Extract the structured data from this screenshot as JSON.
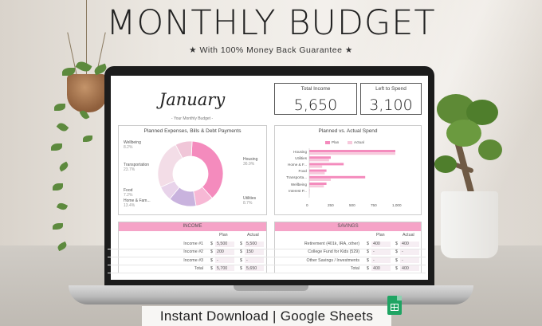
{
  "header": {
    "title": "MONTHLY BUDGET",
    "subtitle": "★ With 100% Money Back Guarantee ★"
  },
  "banner": {
    "text": "Instant Download | Google Sheets",
    "icon": "google-sheets-icon"
  },
  "screen": {
    "month": "January",
    "month_sub": "- Your Monthly Budget -",
    "total_income": {
      "label": "Total Income",
      "value": "5,650"
    },
    "left_to_spend": {
      "label": "Left to Spend",
      "value": "3,100"
    },
    "donut": {
      "title": "Planned Expenses, Bills & Debt Payments",
      "slices": [
        {
          "label": "Housing",
          "pct_label": "36.9%",
          "value": 36.9,
          "color": "#f48bbd"
        },
        {
          "label": "Utilities",
          "pct_label": "8.7%",
          "value": 8.7,
          "color": "#f7b8d5"
        },
        {
          "label": "Home & Fam...",
          "pct_label": "13.4%",
          "value": 13.4,
          "color": "#c9b3de"
        },
        {
          "label": "Food",
          "pct_label": "7.2%",
          "value": 7.2,
          "color": "#e8d3ea"
        },
        {
          "label": "Transportation",
          "pct_label": "23.7%",
          "value": 23.7,
          "color": "#f3dde7"
        },
        {
          "label": "Wellbeing",
          "pct_label": "8.2%",
          "value": 8.2,
          "color": "#f0c6d8"
        }
      ]
    },
    "chart_data": {
      "type": "bar",
      "title": "Planned vs. Actual Spend",
      "categories": [
        "Housing",
        "Utilities",
        "Home & F...",
        "Food",
        "Transporta...",
        "Wellbeing",
        "Interest P..."
      ],
      "series": [
        {
          "name": "Plan",
          "color": "#f48bbd",
          "values": [
            1000,
            250,
            400,
            200,
            650,
            200,
            0
          ]
        },
        {
          "name": "Actual",
          "color": "#f7c9dc",
          "values": [
            1000,
            230,
            150,
            180,
            250,
            170,
            0
          ]
        }
      ],
      "xticks": [
        "0",
        "250",
        "500",
        "750",
        "1,000"
      ],
      "xlim": [
        0,
        1000
      ],
      "legend": "top"
    },
    "income": {
      "title": "INCOME",
      "col_plan": "Plan",
      "col_actual": "Actual",
      "rows": [
        {
          "label": "Income #1",
          "cur1": "$",
          "plan": "5,500",
          "cur2": "$",
          "actual": "5,500"
        },
        {
          "label": "Income #2",
          "cur1": "$",
          "plan": "200",
          "cur2": "$",
          "actual": "150"
        },
        {
          "label": "Income #3",
          "cur1": "$",
          "plan": "-",
          "cur2": "$",
          "actual": "-"
        },
        {
          "label": "Total",
          "cur1": "$",
          "plan": "5,700",
          "cur2": "$",
          "actual": "5,650"
        }
      ]
    },
    "savings": {
      "title": "SAVINGS",
      "col_plan": "Plan",
      "col_actual": "Actual",
      "rows": [
        {
          "label": "Retirement (401k, IRA, other)",
          "cur1": "$",
          "plan": "400",
          "cur2": "$",
          "actual": "400"
        },
        {
          "label": "College Fund for Kids (529)",
          "cur1": "$",
          "plan": "-",
          "cur2": "$",
          "actual": "-"
        },
        {
          "label": "Other Savings / Investments",
          "cur1": "$",
          "plan": "-",
          "cur2": "$",
          "actual": "-"
        },
        {
          "label": "Total",
          "cur1": "$",
          "plan": "400",
          "cur2": "$",
          "actual": "400"
        }
      ]
    }
  }
}
